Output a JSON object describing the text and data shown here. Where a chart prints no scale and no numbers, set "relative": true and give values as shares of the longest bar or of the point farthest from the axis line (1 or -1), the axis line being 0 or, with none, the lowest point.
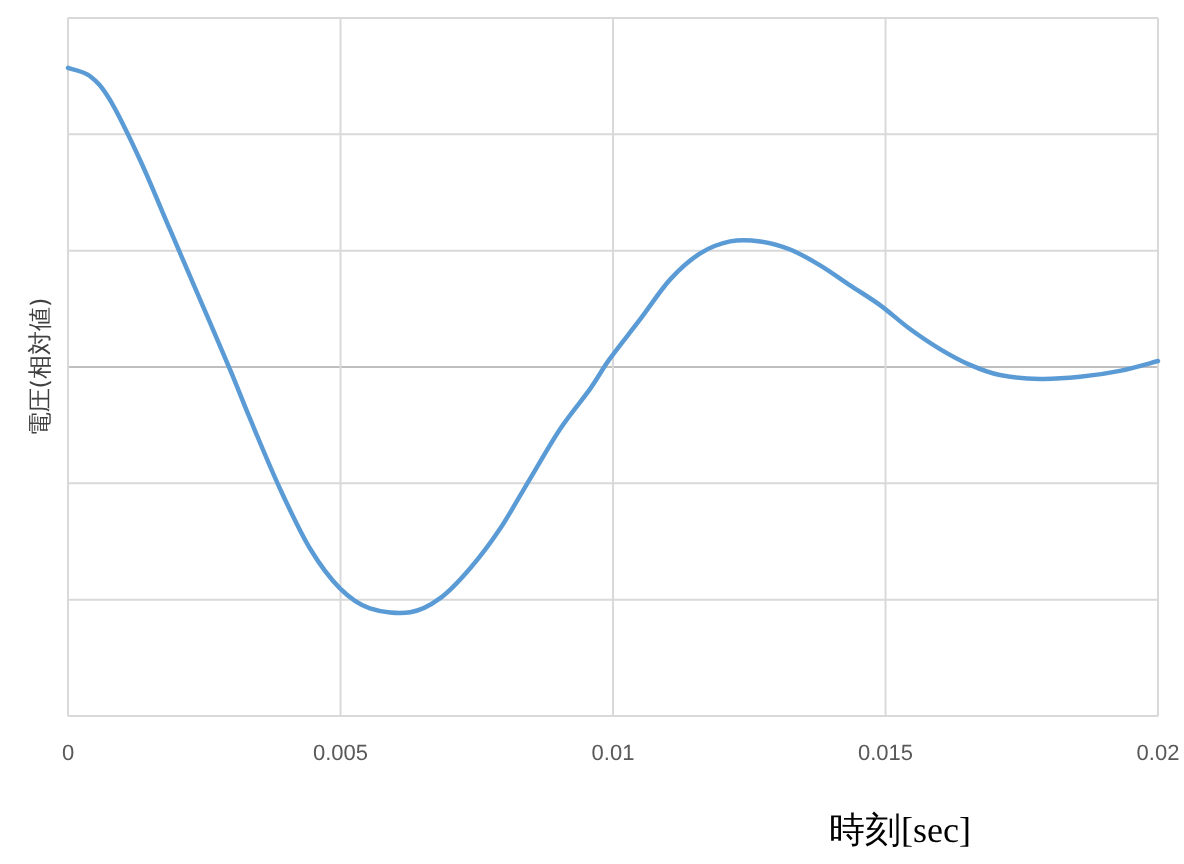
{
  "chart_data": {
    "type": "line",
    "xlabel": "時刻[sec]",
    "ylabel": "電圧(相対値)",
    "relative": true,
    "xlim": [
      0,
      0.02
    ],
    "xticks": [
      0,
      0.005,
      0.01,
      0.015,
      0.02
    ],
    "tick_labels": "x",
    "grid": true,
    "marker": "none",
    "line_style": "solid",
    "series": [
      {
        "color": "#5b9bd5",
        "x": [
          0,
          0.0004,
          0.00077,
          0.00132,
          0.00187,
          0.00242,
          0.00297,
          0.00334,
          0.00389,
          0.00444,
          0.00499,
          0.00554,
          0.00628,
          0.00683,
          0.00738,
          0.00793,
          0.00848,
          0.00903,
          0.00958,
          0.00994,
          0.0105,
          0.01105,
          0.0116,
          0.01215,
          0.0127,
          0.01325,
          0.0138,
          0.01435,
          0.0149,
          0.01545,
          0.016,
          0.01655,
          0.0171,
          0.01783,
          0.01857,
          0.0193,
          0.02
        ],
        "values": [
          1,
          0.973,
          0.893,
          0.693,
          0.46,
          0.227,
          -0.007,
          -0.173,
          -0.407,
          -0.607,
          -0.74,
          -0.807,
          -0.82,
          -0.773,
          -0.673,
          -0.54,
          -0.373,
          -0.207,
          -0.073,
          0.027,
          0.16,
          0.293,
          0.38,
          0.42,
          0.42,
          0.393,
          0.34,
          0.273,
          0.207,
          0.127,
          0.06,
          0.007,
          -0.027,
          -0.04,
          -0.033,
          -0.013,
          0.02
        ]
      }
    ]
  }
}
